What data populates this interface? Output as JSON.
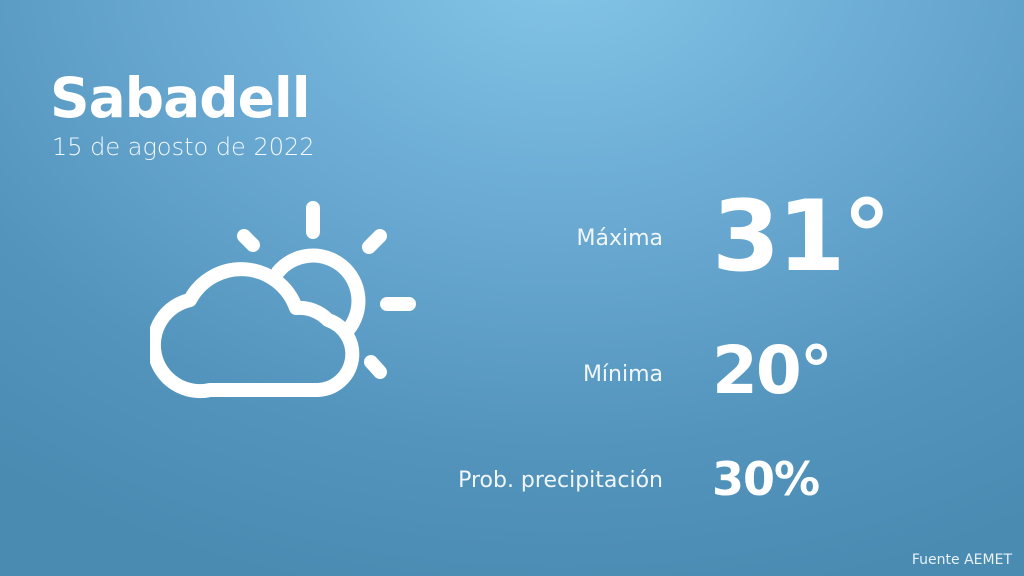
{
  "city": "Sabadell",
  "date": "15 de agosto de 2022",
  "icon": "partly-cloudy-icon",
  "rows": [
    {
      "label": "Máxima",
      "value": "31°"
    },
    {
      "label": "Mínima",
      "value": "20°"
    },
    {
      "label": "Prob. precipitación",
      "value": "30%"
    }
  ],
  "source": "Fuente AEMET"
}
